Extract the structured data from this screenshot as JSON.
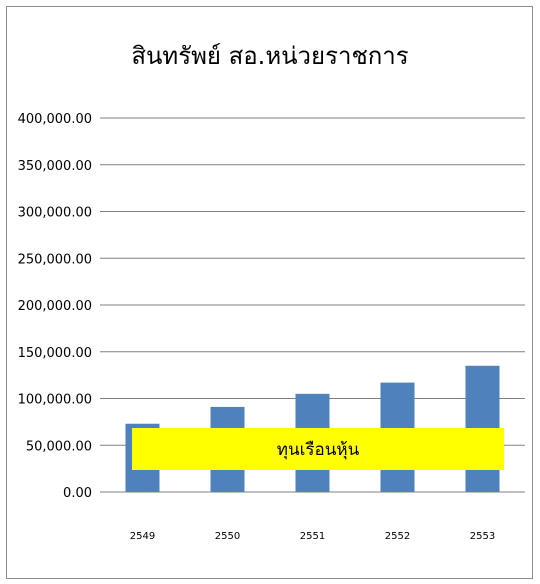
{
  "chart_data": {
    "type": "bar",
    "title": "สินทรัพย์ สอ.หน่วยราชการ",
    "categories": [
      "2549",
      "2550",
      "2551",
      "2552",
      "2553"
    ],
    "values": [
      73000,
      91000,
      105000,
      117000,
      135000
    ],
    "ylim": [
      0,
      400000
    ],
    "y_ticks": [
      "0.00",
      "50,000.00",
      "100,000.00",
      "150,000.00",
      "200,000.00",
      "250,000.00",
      "300,000.00",
      "350,000.00",
      "400,000.00"
    ],
    "y_tick_values": [
      0,
      50000,
      100000,
      150000,
      200000,
      250000,
      300000,
      350000,
      400000
    ],
    "grid": true,
    "legend": "none",
    "bar_color": "#4f81bd",
    "grid_color": "#808080",
    "annotation": {
      "text": "ทุนเรือนหุ้น",
      "background": "#ffff00"
    }
  }
}
